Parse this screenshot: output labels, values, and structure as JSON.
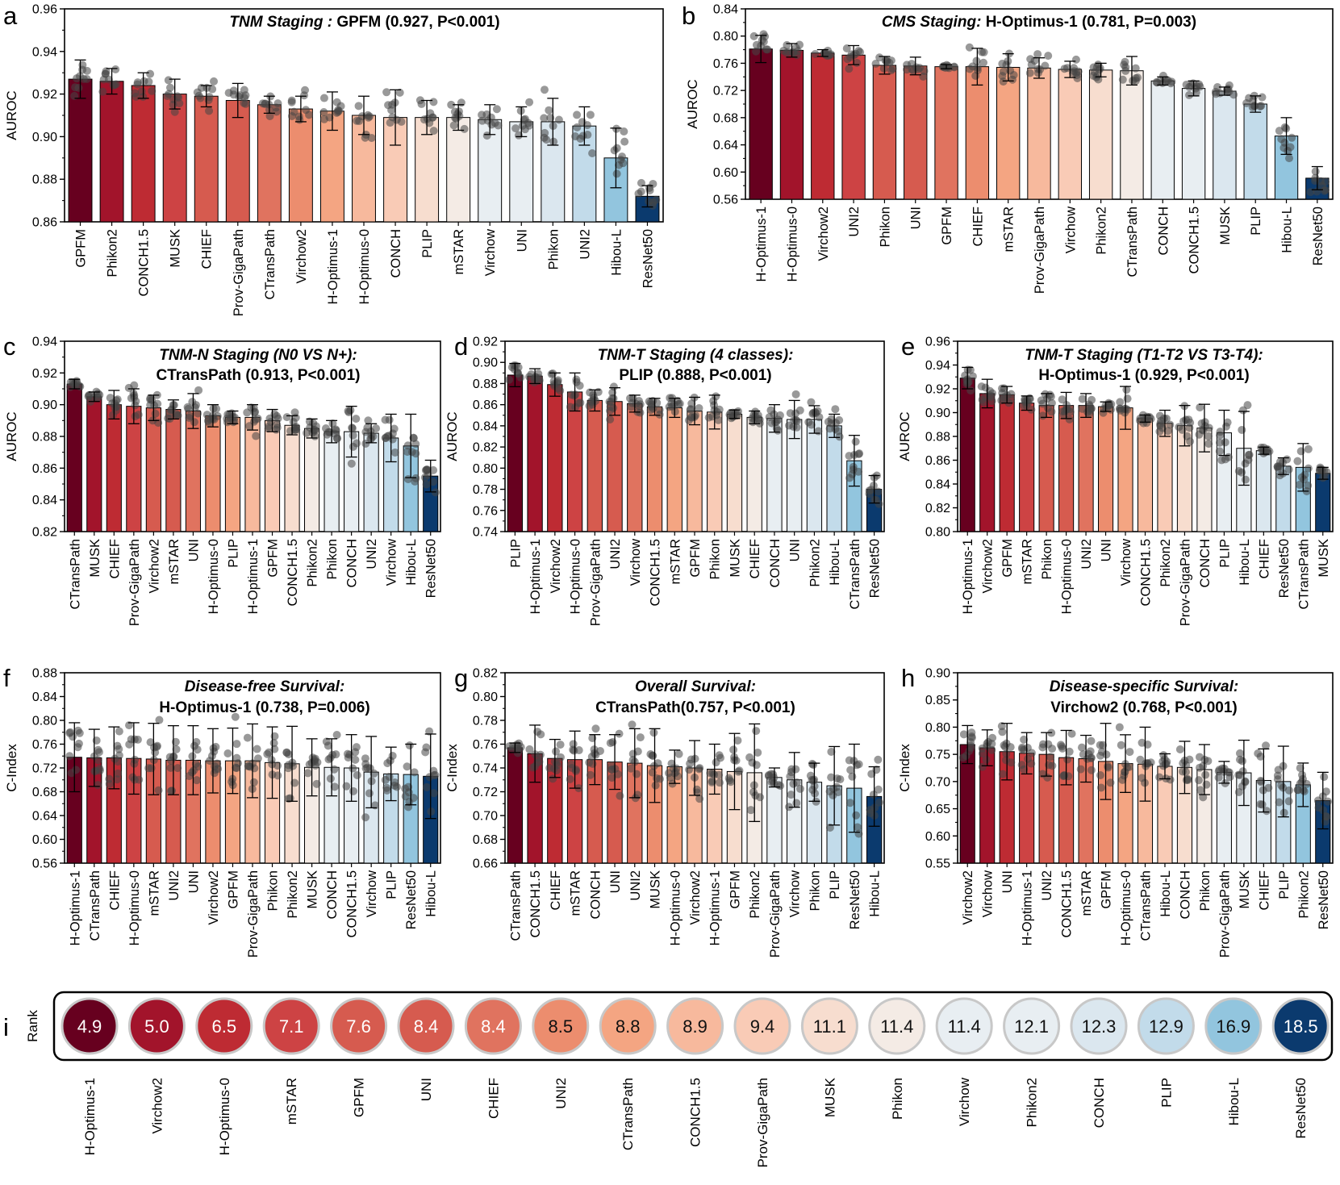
{
  "palette": [
    "#67001f",
    "#a2142b",
    "#be2b33",
    "#cd4344",
    "#d65b4f",
    "#e0735f",
    "#ec8d6e",
    "#f4a582",
    "#f7b99d",
    "#f9cbb6",
    "#f7ddcf",
    "#f4ebe5",
    "#e8eef2",
    "#dbe7ef",
    "#c2dbea",
    "#92c5de",
    "#0b3a6e"
  ],
  "chart_data": [
    {
      "panel": "a",
      "type": "bar",
      "title_italic": "TNM Staging :",
      "title_bold": "GPFM (0.927, P<0.001)",
      "ylabel": "AUROC",
      "ylim": [
        0.86,
        0.96
      ],
      "yticks": [
        "0.86",
        "0.88",
        "0.90",
        "0.92",
        "0.94",
        "0.96"
      ],
      "categories": [
        "GPFM",
        "Phikon2",
        "CONCH1.5",
        "MUSK",
        "CHIEF",
        "Prov-GigaPath",
        "CTransPath",
        "Virchow2",
        "H-Optimus-1",
        "H-Optimus-0",
        "CONCH",
        "PLIP",
        "mSTAR",
        "Virchow",
        "UNI",
        "Phikon",
        "UNI2",
        "Hibou-L",
        "ResNet50"
      ],
      "values": [
        0.927,
        0.926,
        0.924,
        0.92,
        0.919,
        0.917,
        0.915,
        0.913,
        0.912,
        0.91,
        0.909,
        0.909,
        0.909,
        0.908,
        0.907,
        0.907,
        0.905,
        0.89,
        0.872
      ],
      "errors": [
        0.009,
        0.006,
        0.006,
        0.007,
        0.005,
        0.008,
        0.004,
        0.006,
        0.009,
        0.009,
        0.013,
        0.008,
        0.006,
        0.007,
        0.007,
        0.011,
        0.009,
        0.014,
        0.005
      ]
    },
    {
      "panel": "b",
      "type": "bar",
      "title_italic": "CMS Staging:",
      "title_bold": "H-Optimus-1 (0.781, P=0.003)",
      "ylabel": "AUROC",
      "ylim": [
        0.56,
        0.84
      ],
      "yticks": [
        "0.56",
        "0.60",
        "0.64",
        "0.68",
        "0.72",
        "0.76",
        "0.80",
        "0.84"
      ],
      "categories": [
        "H-Optimus-1",
        "H-Optimus-0",
        "Virchow2",
        "UNI2",
        "Phikon",
        "UNI",
        "GPFM",
        "CHIEF",
        "mSTAR",
        "Prov-GigaPath",
        "Virchow",
        "Phikon2",
        "CTransPath",
        "CONCH",
        "CONCH1.5",
        "MUSK",
        "PLIP",
        "Hibou-L",
        "ResNet50"
      ],
      "values": [
        0.781,
        0.779,
        0.775,
        0.772,
        0.757,
        0.756,
        0.755,
        0.755,
        0.754,
        0.753,
        0.751,
        0.75,
        0.749,
        0.734,
        0.723,
        0.719,
        0.7,
        0.653,
        0.591
      ],
      "errors": [
        0.02,
        0.01,
        0.005,
        0.014,
        0.013,
        0.013,
        0.003,
        0.027,
        0.02,
        0.015,
        0.012,
        0.01,
        0.021,
        0.006,
        0.011,
        0.006,
        0.012,
        0.027,
        0.017
      ]
    },
    {
      "panel": "c",
      "type": "bar",
      "title_italic": "TNM-N Staging (N0 VS N+):",
      "title_bold": "CTransPath (0.913, P<0.001)",
      "ylabel": "AUROC",
      "ylim": [
        0.82,
        0.94
      ],
      "yticks": [
        "0.82",
        "0.84",
        "0.86",
        "0.88",
        "0.90",
        "0.92",
        "0.94"
      ],
      "categories": [
        "CTransPath",
        "MUSK",
        "CHIEF",
        "Prov-GigaPath",
        "Virchow2",
        "mSTAR",
        "UNI",
        "H-Optimus-0",
        "PLIP",
        "H-Optimus-1",
        "GPFM",
        "CONCH1.5",
        "Phikon2",
        "Phikon",
        "CONCH",
        "UNI2",
        "Virchow",
        "Hibou-L",
        "ResNet50"
      ],
      "values": [
        0.913,
        0.905,
        0.9,
        0.899,
        0.898,
        0.897,
        0.896,
        0.893,
        0.892,
        0.892,
        0.89,
        0.887,
        0.885,
        0.883,
        0.883,
        0.882,
        0.879,
        0.874,
        0.855
      ],
      "errors": [
        0.003,
        0.003,
        0.009,
        0.011,
        0.008,
        0.006,
        0.011,
        0.007,
        0.004,
        0.008,
        0.007,
        0.006,
        0.006,
        0.007,
        0.016,
        0.006,
        0.015,
        0.02,
        0.01
      ]
    },
    {
      "panel": "d",
      "type": "bar",
      "title_italic": "TNM-T Staging (4 classes):",
      "title_bold": "PLIP (0.888, P<0.001)",
      "ylabel": "AUROC",
      "ylim": [
        0.74,
        0.92
      ],
      "yticks": [
        "0.74",
        "0.76",
        "0.78",
        "0.80",
        "0.82",
        "0.84",
        "0.86",
        "0.88",
        "0.90",
        "0.92"
      ],
      "categories": [
        "PLIP",
        "H-Optimus-1",
        "Virchow2",
        "H-Optimus-0",
        "Prov-GigaPath",
        "UNI2",
        "Virchow",
        "CONCH1.5",
        "mSTAR",
        "GPFM",
        "Phikon",
        "MUSK",
        "CHIEF",
        "CONCH",
        "UNI",
        "Phikon2",
        "Hibou-L",
        "CTransPath",
        "ResNet50"
      ],
      "values": [
        0.888,
        0.887,
        0.879,
        0.872,
        0.864,
        0.863,
        0.861,
        0.858,
        0.857,
        0.854,
        0.853,
        0.851,
        0.848,
        0.847,
        0.846,
        0.846,
        0.84,
        0.807,
        0.78
      ],
      "errors": [
        0.011,
        0.007,
        0.011,
        0.018,
        0.01,
        0.013,
        0.008,
        0.008,
        0.009,
        0.013,
        0.016,
        0.004,
        0.006,
        0.013,
        0.018,
        0.013,
        0.011,
        0.024,
        0.013
      ]
    },
    {
      "panel": "e",
      "type": "bar",
      "title_italic": "TNM-T Staging (T1-T2 VS T3-T4):",
      "title_bold": "H-Optimus-1 (0.929, P<0.001)",
      "ylabel": "AUROC",
      "ylim": [
        0.8,
        0.96
      ],
      "yticks": [
        "0.80",
        "0.82",
        "0.84",
        "0.86",
        "0.88",
        "0.90",
        "0.92",
        "0.94",
        "0.96"
      ],
      "categories": [
        "H-Optimus-1",
        "Virchow2",
        "GPFM",
        "mSTAR",
        "Phikon",
        "H-Optimus-0",
        "UNI2",
        "UNI",
        "Virchow",
        "CONCH1.5",
        "Phikon2",
        "Prov-GigaPath",
        "CONCH",
        "PLIP",
        "Hibou-L",
        "CHIEF",
        "ResNet50",
        "CTransPath",
        "MUSK"
      ],
      "values": [
        0.929,
        0.916,
        0.915,
        0.908,
        0.906,
        0.906,
        0.906,
        0.905,
        0.904,
        0.895,
        0.891,
        0.889,
        0.887,
        0.883,
        0.87,
        0.868,
        0.855,
        0.854,
        0.849
      ],
      "errors": [
        0.009,
        0.012,
        0.007,
        0.006,
        0.01,
        0.011,
        0.01,
        0.004,
        0.018,
        0.003,
        0.011,
        0.017,
        0.02,
        0.019,
        0.031,
        0.003,
        0.007,
        0.02,
        0.005
      ]
    },
    {
      "panel": "f",
      "type": "bar",
      "title_italic": "Disease-free Survival:",
      "title_bold": "H-Optimus-1 (0.738, P=0.006)",
      "ylabel": "C-Index",
      "ylim": [
        0.56,
        0.88
      ],
      "yticks": [
        "0.56",
        "0.60",
        "0.64",
        "0.68",
        "0.72",
        "0.76",
        "0.80",
        "0.84",
        "0.88"
      ],
      "categories": [
        "H-Optimus-1",
        "CTransPath",
        "CHIEF",
        "H-Optimus-0",
        "mSTAR",
        "UNI2",
        "UNI",
        "Virchow2",
        "GPFM",
        "Prov-GigaPath",
        "Phikon",
        "Phikon2",
        "MUSK",
        "CONCH",
        "CONCH1.5",
        "Virchow",
        "PLIP",
        "ResNet50",
        "Hibou-L"
      ],
      "values": [
        0.738,
        0.737,
        0.737,
        0.736,
        0.735,
        0.733,
        0.733,
        0.732,
        0.732,
        0.732,
        0.729,
        0.727,
        0.721,
        0.721,
        0.72,
        0.713,
        0.71,
        0.709,
        0.706
      ],
      "errors": [
        0.058,
        0.048,
        0.052,
        0.06,
        0.06,
        0.058,
        0.058,
        0.054,
        0.055,
        0.062,
        0.06,
        0.063,
        0.048,
        0.048,
        0.056,
        0.06,
        0.045,
        0.051,
        0.071
      ]
    },
    {
      "panel": "g",
      "type": "bar",
      "title_italic": "Overall Survival:",
      "title_bold": "CTransPath(0.757, P<0.001)",
      "ylabel": "C-Index",
      "ylim": [
        0.66,
        0.82
      ],
      "yticks": [
        "0.66",
        "0.68",
        "0.70",
        "0.72",
        "0.74",
        "0.76",
        "0.78",
        "0.80",
        "0.82"
      ],
      "categories": [
        "CTransPath",
        "CONCH1.5",
        "CHIEF",
        "mSTAR",
        "CONCH",
        "UNI",
        "UNI2",
        "MUSK",
        "H-Optimus-0",
        "Virchow2",
        "H-Optimus-1",
        "GPFM",
        "Phikon2",
        "Prov-GigaPath",
        "Virchow",
        "Phikon",
        "PLIP",
        "ResNet50",
        "Hibou-L"
      ],
      "values": [
        0.757,
        0.752,
        0.748,
        0.747,
        0.747,
        0.745,
        0.744,
        0.742,
        0.741,
        0.74,
        0.739,
        0.737,
        0.736,
        0.732,
        0.73,
        0.728,
        0.725,
        0.723,
        0.716
      ],
      "errors": [
        0.004,
        0.024,
        0.016,
        0.024,
        0.021,
        0.023,
        0.029,
        0.031,
        0.014,
        0.023,
        0.021,
        0.032,
        0.041,
        0.008,
        0.023,
        0.016,
        0.033,
        0.037,
        0.025
      ]
    },
    {
      "panel": "h",
      "type": "bar",
      "title_italic": "Disease-specific Survival:",
      "title_bold": "Virchow2 (0.768, P<0.001)",
      "ylabel": "C-Index",
      "ylim": [
        0.55,
        0.9
      ],
      "yticks": [
        "0.55",
        "0.60",
        "0.65",
        "0.70",
        "0.75",
        "0.80",
        "0.85",
        "0.90"
      ],
      "categories": [
        "Virchow2",
        "Virchow",
        "UNI",
        "H-Optimus-1",
        "UNI2",
        "CONCH1.5",
        "mSTAR",
        "GPFM",
        "H-Optimus-0",
        "CTransPath",
        "Hibou-L",
        "CONCH",
        "Phikon",
        "Prov-GigaPath",
        "MUSK",
        "CHIEF",
        "PLIP",
        "Phikon2",
        "ResNet50"
      ],
      "values": [
        0.768,
        0.762,
        0.755,
        0.752,
        0.75,
        0.744,
        0.742,
        0.737,
        0.733,
        0.732,
        0.728,
        0.726,
        0.722,
        0.717,
        0.716,
        0.702,
        0.7,
        0.694,
        0.665
      ],
      "errors": [
        0.035,
        0.033,
        0.052,
        0.038,
        0.04,
        0.05,
        0.043,
        0.07,
        0.053,
        0.068,
        0.023,
        0.048,
        0.046,
        0.02,
        0.06,
        0.058,
        0.065,
        0.04,
        0.052
      ]
    },
    {
      "panel": "i",
      "type": "table",
      "ylabel": "Rank",
      "categories": [
        "H-Optimus-1",
        "Virchow2",
        "H-Optimus-0",
        "mSTAR",
        "GPFM",
        "UNI",
        "CHIEF",
        "UNI2",
        "CTransPath",
        "CONCH1.5",
        "Prov-GigaPath",
        "MUSK",
        "Phikon",
        "Virchow",
        "Phikon2",
        "CONCH",
        "PLIP",
        "Hibou-L",
        "ResNet50"
      ],
      "values": [
        "4.9",
        "5.0",
        "6.5",
        "7.1",
        "7.6",
        "8.4",
        "8.4",
        "8.5",
        "8.8",
        "8.9",
        "9.4",
        "11.1",
        "11.4",
        "11.4",
        "12.1",
        "12.3",
        "12.9",
        "16.9",
        "18.5"
      ]
    }
  ]
}
